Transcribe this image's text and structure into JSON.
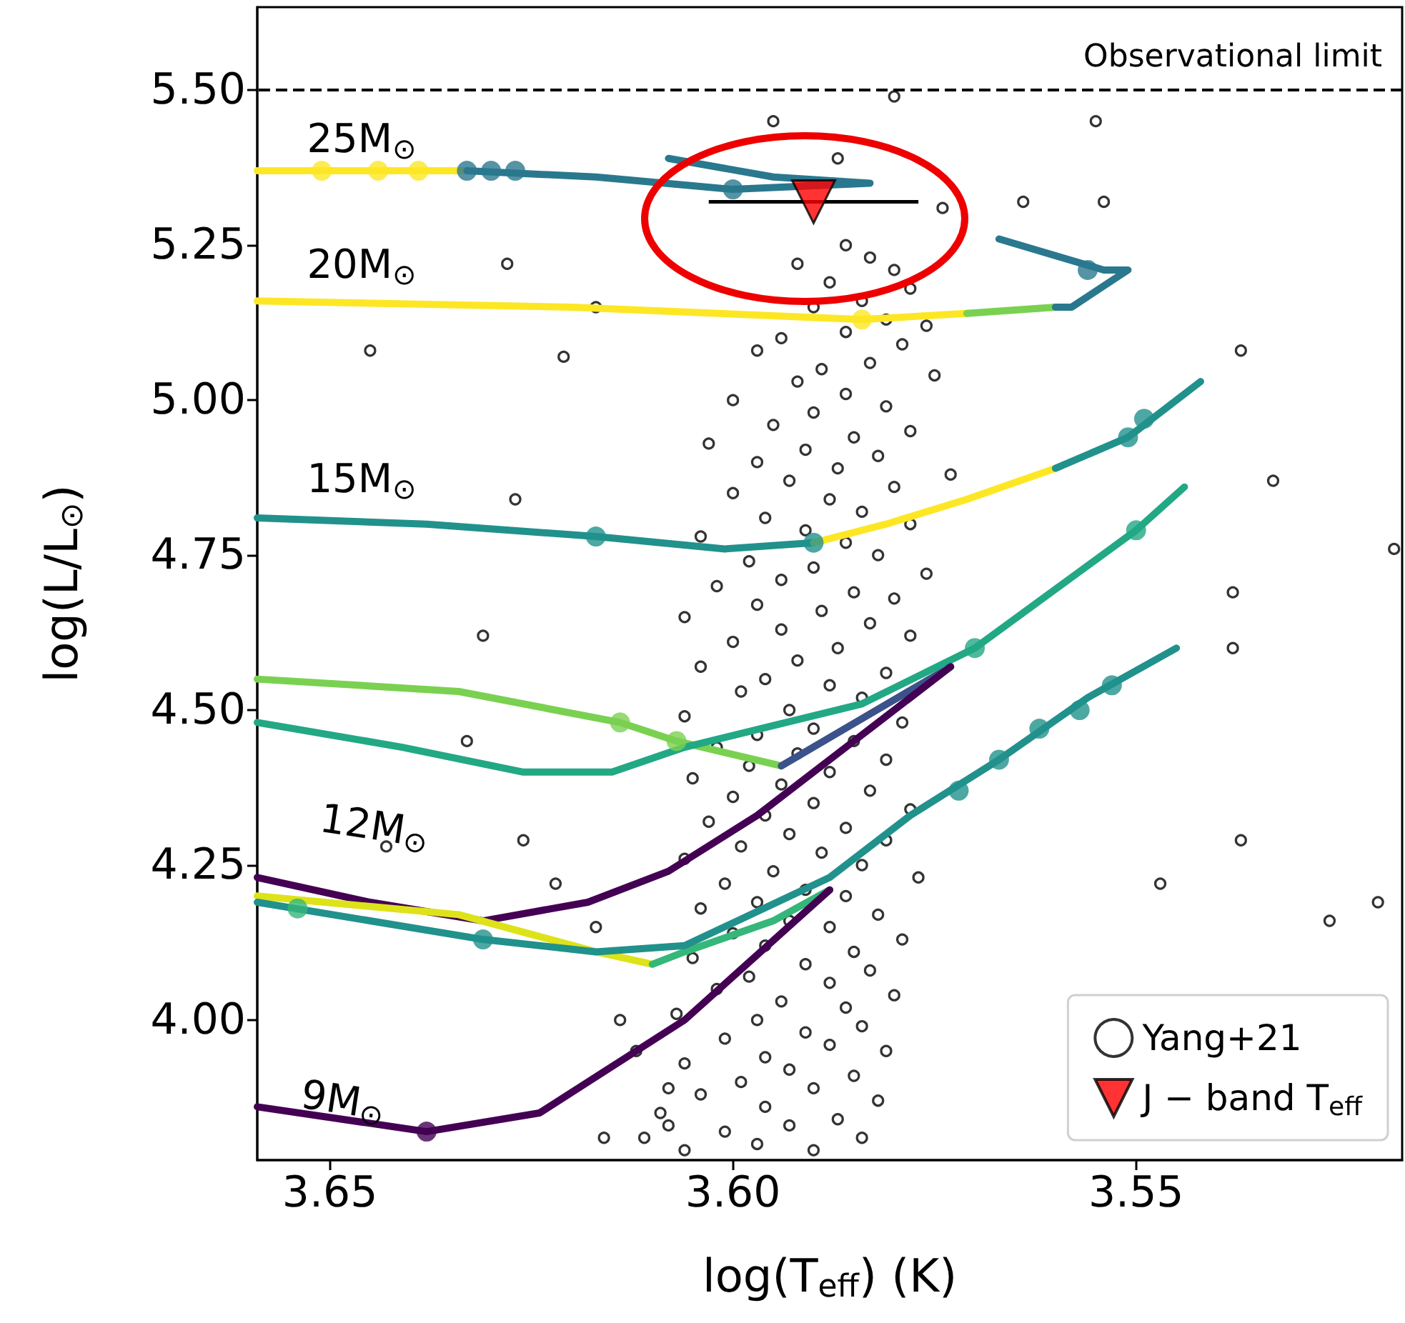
{
  "chart_data": {
    "type": "line",
    "xlabel": "log(T$_{eff}$) (K)",
    "ylabel": "log(L/L$_{⊙}$)",
    "xlim": [
      3.659,
      3.517
    ],
    "ylim": [
      3.774,
      5.634
    ],
    "xticks": [
      3.65,
      {
        "value": 3.6,
        "label": "3.60"
      },
      3.55
    ],
    "yticks": [
      {
        "value": 4,
        "label": "4.00"
      },
      4.25,
      {
        "value": 4.5,
        "label": "4.50"
      },
      4.75,
      {
        "value": 5,
        "label": "5.00"
      },
      5.25,
      {
        "value": 5.5,
        "label": "5.50"
      }
    ],
    "grid": false,
    "legend": "bottom right",
    "ref_lines": [
      {
        "axis": "y",
        "value": 5.5,
        "label": "Observational limit",
        "line_style": "dashed",
        "color": "#000000"
      }
    ],
    "annotations": [
      "25M$_{⊙}$",
      "20M$_{⊙}$",
      "15M$_{⊙}$",
      "12M$_{⊙}$",
      "9M$_{⊙}$"
    ],
    "series": [
      {
        "name": "Yang+21",
        "type": "scatter",
        "marker": "circle",
        "color": "#000000",
        "x": [
          3.58,
          3.595,
          3.587,
          3.574,
          3.564,
          3.554,
          3.555,
          3.628,
          3.617,
          3.621,
          3.537,
          3.645,
          3.627,
          3.533,
          3.518,
          3.538,
          3.538,
          3.526,
          3.52,
          3.537,
          3.547,
          3.633,
          3.643,
          3.631,
          3.626,
          3.622,
          3.617,
          3.608,
          3.616,
          3.586,
          3.583,
          3.592,
          3.58,
          3.588,
          3.578,
          3.584,
          3.59,
          3.581,
          3.576,
          3.586,
          3.594,
          3.579,
          3.597,
          3.583,
          3.589,
          3.575,
          3.592,
          3.586,
          3.6,
          3.581,
          3.59,
          3.595,
          3.578,
          3.585,
          3.603,
          3.591,
          3.582,
          3.597,
          3.587,
          3.573,
          3.593,
          3.58,
          3.6,
          3.588,
          3.584,
          3.596,
          3.578,
          3.591,
          3.604,
          3.586,
          3.582,
          3.598,
          3.59,
          3.576,
          3.594,
          3.602,
          3.585,
          3.58,
          3.597,
          3.589,
          3.606,
          3.583,
          3.594,
          3.578,
          3.6,
          3.587,
          3.592,
          3.604,
          3.581,
          3.596,
          3.588,
          3.599,
          3.584,
          3.593,
          3.606,
          3.579,
          3.59,
          3.597,
          3.585,
          3.602,
          3.592,
          3.581,
          3.598,
          3.588,
          3.605,
          3.594,
          3.583,
          3.6,
          3.59,
          3.578,
          3.596,
          3.603,
          3.586,
          3.593,
          3.581,
          3.599,
          3.589,
          3.606,
          3.584,
          3.595,
          3.577,
          3.601,
          3.591,
          3.586,
          3.597,
          3.604,
          3.582,
          3.593,
          3.588,
          3.6,
          3.579,
          3.596,
          3.585,
          3.605,
          3.591,
          3.583,
          3.598,
          3.588,
          3.602,
          3.58,
          3.594,
          3.586,
          3.607,
          3.597,
          3.584,
          3.591,
          3.601,
          3.588,
          3.581,
          3.596,
          3.606,
          3.593,
          3.585,
          3.599,
          3.59,
          3.604,
          3.582,
          3.596,
          3.609,
          3.587,
          3.593,
          3.601,
          3.584,
          3.597,
          3.606,
          3.59,
          3.611,
          3.608,
          3.612,
          3.614
        ],
        "values": [
          5.49,
          5.45,
          5.39,
          5.31,
          5.32,
          5.32,
          5.45,
          5.22,
          5.15,
          5.07,
          5.08,
          5.08,
          4.84,
          4.87,
          4.76,
          4.69,
          4.6,
          4.16,
          4.19,
          4.29,
          4.22,
          4.45,
          4.28,
          4.62,
          4.29,
          4.22,
          4.15,
          3.83,
          3.81,
          5.25,
          5.23,
          5.22,
          5.21,
          5.19,
          5.18,
          5.16,
          5.15,
          5.13,
          5.12,
          5.11,
          5.1,
          5.09,
          5.08,
          5.06,
          5.05,
          5.04,
          5.03,
          5.01,
          5.0,
          4.99,
          4.98,
          4.96,
          4.95,
          4.94,
          4.93,
          4.92,
          4.91,
          4.9,
          4.89,
          4.88,
          4.87,
          4.86,
          4.85,
          4.84,
          4.82,
          4.81,
          4.8,
          4.79,
          4.78,
          4.77,
          4.75,
          4.74,
          4.73,
          4.72,
          4.71,
          4.7,
          4.69,
          4.68,
          4.67,
          4.66,
          4.65,
          4.64,
          4.63,
          4.62,
          4.61,
          4.6,
          4.58,
          4.57,
          4.56,
          4.55,
          4.54,
          4.53,
          4.52,
          4.5,
          4.49,
          4.48,
          4.47,
          4.46,
          4.45,
          4.44,
          4.43,
          4.42,
          4.41,
          4.4,
          4.39,
          4.38,
          4.37,
          4.36,
          4.35,
          4.34,
          4.33,
          4.32,
          4.31,
          4.3,
          4.29,
          4.28,
          4.27,
          4.26,
          4.25,
          4.24,
          4.23,
          4.22,
          4.21,
          4.2,
          4.19,
          4.18,
          4.17,
          4.16,
          4.15,
          4.14,
          4.13,
          4.12,
          4.11,
          4.1,
          4.09,
          4.08,
          4.07,
          4.06,
          4.05,
          4.04,
          4.03,
          4.02,
          4.01,
          4.0,
          3.99,
          3.98,
          3.97,
          3.96,
          3.95,
          3.94,
          3.93,
          3.92,
          3.91,
          3.9,
          3.89,
          3.88,
          3.87,
          3.86,
          3.85,
          3.84,
          3.83,
          3.82,
          3.81,
          3.8,
          3.79,
          3.79,
          3.81,
          3.89,
          3.95,
          4.0
        ]
      },
      {
        "color": "#fde725",
        "x": [
          3.659,
          3.633
        ],
        "values": [
          5.37,
          5.37
        ]
      },
      {
        "color": "#2a788e",
        "x": [
          3.633,
          3.617,
          3.6,
          3.583,
          3.595,
          3.608
        ],
        "values": [
          5.37,
          5.36,
          5.34,
          5.35,
          5.36,
          5.39
        ]
      },
      {
        "color": "#fde725",
        "x": [
          3.659,
          3.62,
          3.584,
          3.571
        ],
        "values": [
          5.16,
          5.15,
          5.13,
          5.14
        ]
      },
      {
        "color": "#7ad151",
        "x": [
          3.571,
          3.56
        ],
        "values": [
          5.14,
          5.15
        ]
      },
      {
        "color": "#2a788e",
        "x": [
          3.56,
          3.558,
          3.551,
          3.554,
          3.567
        ],
        "values": [
          5.15,
          5.15,
          5.21,
          5.21,
          5.26
        ]
      },
      {
        "color": "#21918c",
        "x": [
          3.659,
          3.638,
          3.617,
          3.601,
          3.59
        ],
        "values": [
          4.81,
          4.8,
          4.78,
          4.76,
          4.77
        ]
      },
      {
        "color": "#fde725",
        "x": [
          3.59,
          3.581,
          3.571,
          3.56
        ],
        "values": [
          4.77,
          4.8,
          4.84,
          4.89
        ]
      },
      {
        "color": "#21918c",
        "x": [
          3.56,
          3.551,
          3.542
        ],
        "values": [
          4.89,
          4.94,
          5.03
        ]
      },
      {
        "color": "#7ad151",
        "x": [
          3.659,
          3.634,
          3.614,
          3.607,
          3.594
        ],
        "values": [
          4.55,
          4.53,
          4.48,
          4.45,
          4.41
        ]
      },
      {
        "color": "#3b528b",
        "x": [
          3.594,
          3.573
        ],
        "values": [
          4.41,
          4.57
        ]
      },
      {
        "color": "#22a884",
        "x": [
          3.659,
          3.641,
          3.626,
          3.615,
          3.606,
          3.584,
          3.57,
          3.55,
          3.544
        ],
        "values": [
          4.48,
          4.44,
          4.4,
          4.4,
          4.44,
          4.51,
          4.6,
          4.79,
          4.86
        ]
      },
      {
        "color": "#440154",
        "x": [
          3.659,
          3.645,
          3.631,
          3.618,
          3.608,
          3.597,
          3.585,
          3.573
        ],
        "values": [
          4.23,
          4.19,
          4.16,
          4.19,
          4.24,
          4.33,
          4.45,
          4.57
        ]
      },
      {
        "color": "#dde318",
        "x": [
          3.659,
          3.634,
          3.617,
          3.61
        ],
        "values": [
          4.2,
          4.17,
          4.11,
          4.09
        ]
      },
      {
        "color": "#35b779",
        "x": [
          3.61,
          3.606,
          3.595,
          3.588
        ],
        "values": [
          4.09,
          4.11,
          4.16,
          4.21
        ]
      },
      {
        "color": "#21918c",
        "x": [
          3.659,
          3.631,
          3.617,
          3.606,
          3.588,
          3.578,
          3.567,
          3.556,
          3.545
        ],
        "values": [
          4.19,
          4.13,
          4.11,
          4.12,
          4.23,
          4.33,
          4.42,
          4.52,
          4.6
        ]
      },
      {
        "color": "#440154",
        "x": [
          3.659,
          3.638,
          3.624,
          3.606,
          3.588
        ],
        "values": [
          3.86,
          3.82,
          3.85,
          4.0,
          4.21
        ]
      },
      {
        "type": "scatter",
        "marker": "circle",
        "x": [
          3.651,
          3.644,
          3.639,
          3.633,
          3.63,
          3.627,
          3.6,
          3.584,
          3.556,
          3.617,
          3.59,
          3.551,
          3.549,
          3.614,
          3.607,
          3.57,
          3.55,
          3.654,
          3.631,
          3.572,
          3.567,
          3.562,
          3.557,
          3.553,
          3.638
        ],
        "values": [
          5.37,
          5.37,
          5.37,
          5.37,
          5.37,
          5.37,
          5.34,
          5.13,
          5.21,
          4.78,
          4.77,
          4.94,
          4.97,
          4.48,
          4.45,
          4.6,
          4.79,
          4.18,
          4.13,
          4.37,
          4.42,
          4.47,
          4.5,
          4.54,
          3.82
        ],
        "colors": [
          "#fde725",
          "#fde725",
          "#fde725",
          "#2a788e",
          "#2a788e",
          "#2a788e",
          "#2a788e",
          "#fde725",
          "#2a788e",
          "#21918c",
          "#21918c",
          "#21918c",
          "#21918c",
          "#7ad151",
          "#7ad151",
          "#22a884",
          "#22a884",
          "#35b779",
          "#21918c",
          "#21918c",
          "#21918c",
          "#21918c",
          "#21918c",
          "#21918c",
          "#440154"
        ]
      },
      {
        "name": "J − band T$_{eff}$",
        "type": "scatter",
        "marker": "triangle",
        "color": "#ff0000",
        "x": [
          3.59
        ],
        "values": [
          5.32
        ],
        "xerrors": [
          0.013
        ]
      }
    ]
  }
}
